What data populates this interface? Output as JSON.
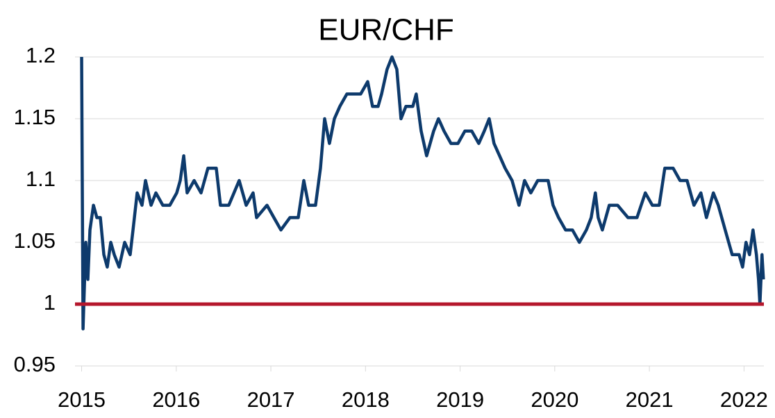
{
  "chart_data": {
    "type": "line",
    "title": "EUR/CHF",
    "x": [
      2015.0,
      2015.015,
      2015.044,
      2015.066,
      2015.088,
      2015.125,
      2015.161,
      2015.198,
      2015.235,
      2015.271,
      2015.308,
      2015.345,
      2015.396,
      2015.455,
      2015.513,
      2015.543,
      2015.587,
      2015.638,
      2015.675,
      2015.734,
      2015.785,
      2015.858,
      2015.932,
      2016.005,
      2016.042,
      2016.079,
      2016.115,
      2016.189,
      2016.262,
      2016.335,
      2016.423,
      2016.467,
      2016.555,
      2016.665,
      2016.739,
      2016.812,
      2016.849,
      2016.959,
      2017.032,
      2017.106,
      2017.201,
      2017.289,
      2017.348,
      2017.399,
      2017.472,
      2017.524,
      2017.568,
      2017.619,
      2017.671,
      2017.729,
      2017.803,
      2017.876,
      2017.949,
      2018.023,
      2018.074,
      2018.133,
      2018.17,
      2018.228,
      2018.28,
      2018.331,
      2018.375,
      2018.427,
      2018.5,
      2018.536,
      2018.588,
      2018.646,
      2018.72,
      2018.771,
      2018.83,
      2018.903,
      2018.977,
      2019.05,
      2019.123,
      2019.197,
      2019.255,
      2019.307,
      2019.358,
      2019.417,
      2019.475,
      2019.549,
      2019.622,
      2019.681,
      2019.747,
      2019.82,
      2019.93,
      2019.982,
      2020.04,
      2020.114,
      2020.187,
      2020.26,
      2020.334,
      2020.385,
      2020.429,
      2020.459,
      2020.503,
      2020.576,
      2020.664,
      2020.774,
      2020.869,
      2020.957,
      2021.031,
      2021.104,
      2021.163,
      2021.251,
      2021.324,
      2021.398,
      2021.471,
      2021.544,
      2021.603,
      2021.676,
      2021.728,
      2021.801,
      2021.875,
      2021.948,
      2021.985,
      2022.021,
      2022.058,
      2022.095,
      2022.131,
      2022.153,
      2022.168,
      2022.19,
      2022.205
    ],
    "series": [
      {
        "color": "#0d3a6c",
        "values": [
          1.2,
          0.98,
          1.05,
          1.02,
          1.06,
          1.08,
          1.07,
          1.07,
          1.04,
          1.03,
          1.05,
          1.04,
          1.03,
          1.05,
          1.04,
          1.06,
          1.09,
          1.08,
          1.1,
          1.08,
          1.09,
          1.08,
          1.08,
          1.09,
          1.1,
          1.12,
          1.09,
          1.1,
          1.09,
          1.11,
          1.11,
          1.08,
          1.08,
          1.1,
          1.08,
          1.09,
          1.07,
          1.08,
          1.07,
          1.06,
          1.07,
          1.07,
          1.1,
          1.08,
          1.08,
          1.11,
          1.15,
          1.13,
          1.15,
          1.16,
          1.17,
          1.17,
          1.17,
          1.18,
          1.16,
          1.16,
          1.17,
          1.19,
          1.2,
          1.19,
          1.15,
          1.16,
          1.16,
          1.17,
          1.14,
          1.12,
          1.14,
          1.15,
          1.14,
          1.13,
          1.13,
          1.14,
          1.14,
          1.13,
          1.14,
          1.15,
          1.13,
          1.12,
          1.11,
          1.1,
          1.08,
          1.1,
          1.09,
          1.1,
          1.1,
          1.08,
          1.07,
          1.06,
          1.06,
          1.05,
          1.06,
          1.07,
          1.09,
          1.07,
          1.06,
          1.08,
          1.08,
          1.07,
          1.07,
          1.09,
          1.08,
          1.08,
          1.11,
          1.11,
          1.1,
          1.1,
          1.08,
          1.09,
          1.07,
          1.09,
          1.08,
          1.06,
          1.04,
          1.04,
          1.03,
          1.05,
          1.04,
          1.06,
          1.04,
          1.02,
          1.0,
          1.04,
          1.02
        ]
      }
    ],
    "reference_line": {
      "value": 1,
      "color": "#b5172c"
    },
    "xlim": [
      2014.93,
      2022.21
    ],
    "xticks": [
      2015,
      2016,
      2017,
      2018,
      2019,
      2020,
      2021,
      2022
    ],
    "ylim": [
      0.95,
      1.2
    ],
    "yticks": [
      0.95,
      1,
      1.05,
      1.1,
      1.15,
      1.2
    ],
    "grid": true
  }
}
